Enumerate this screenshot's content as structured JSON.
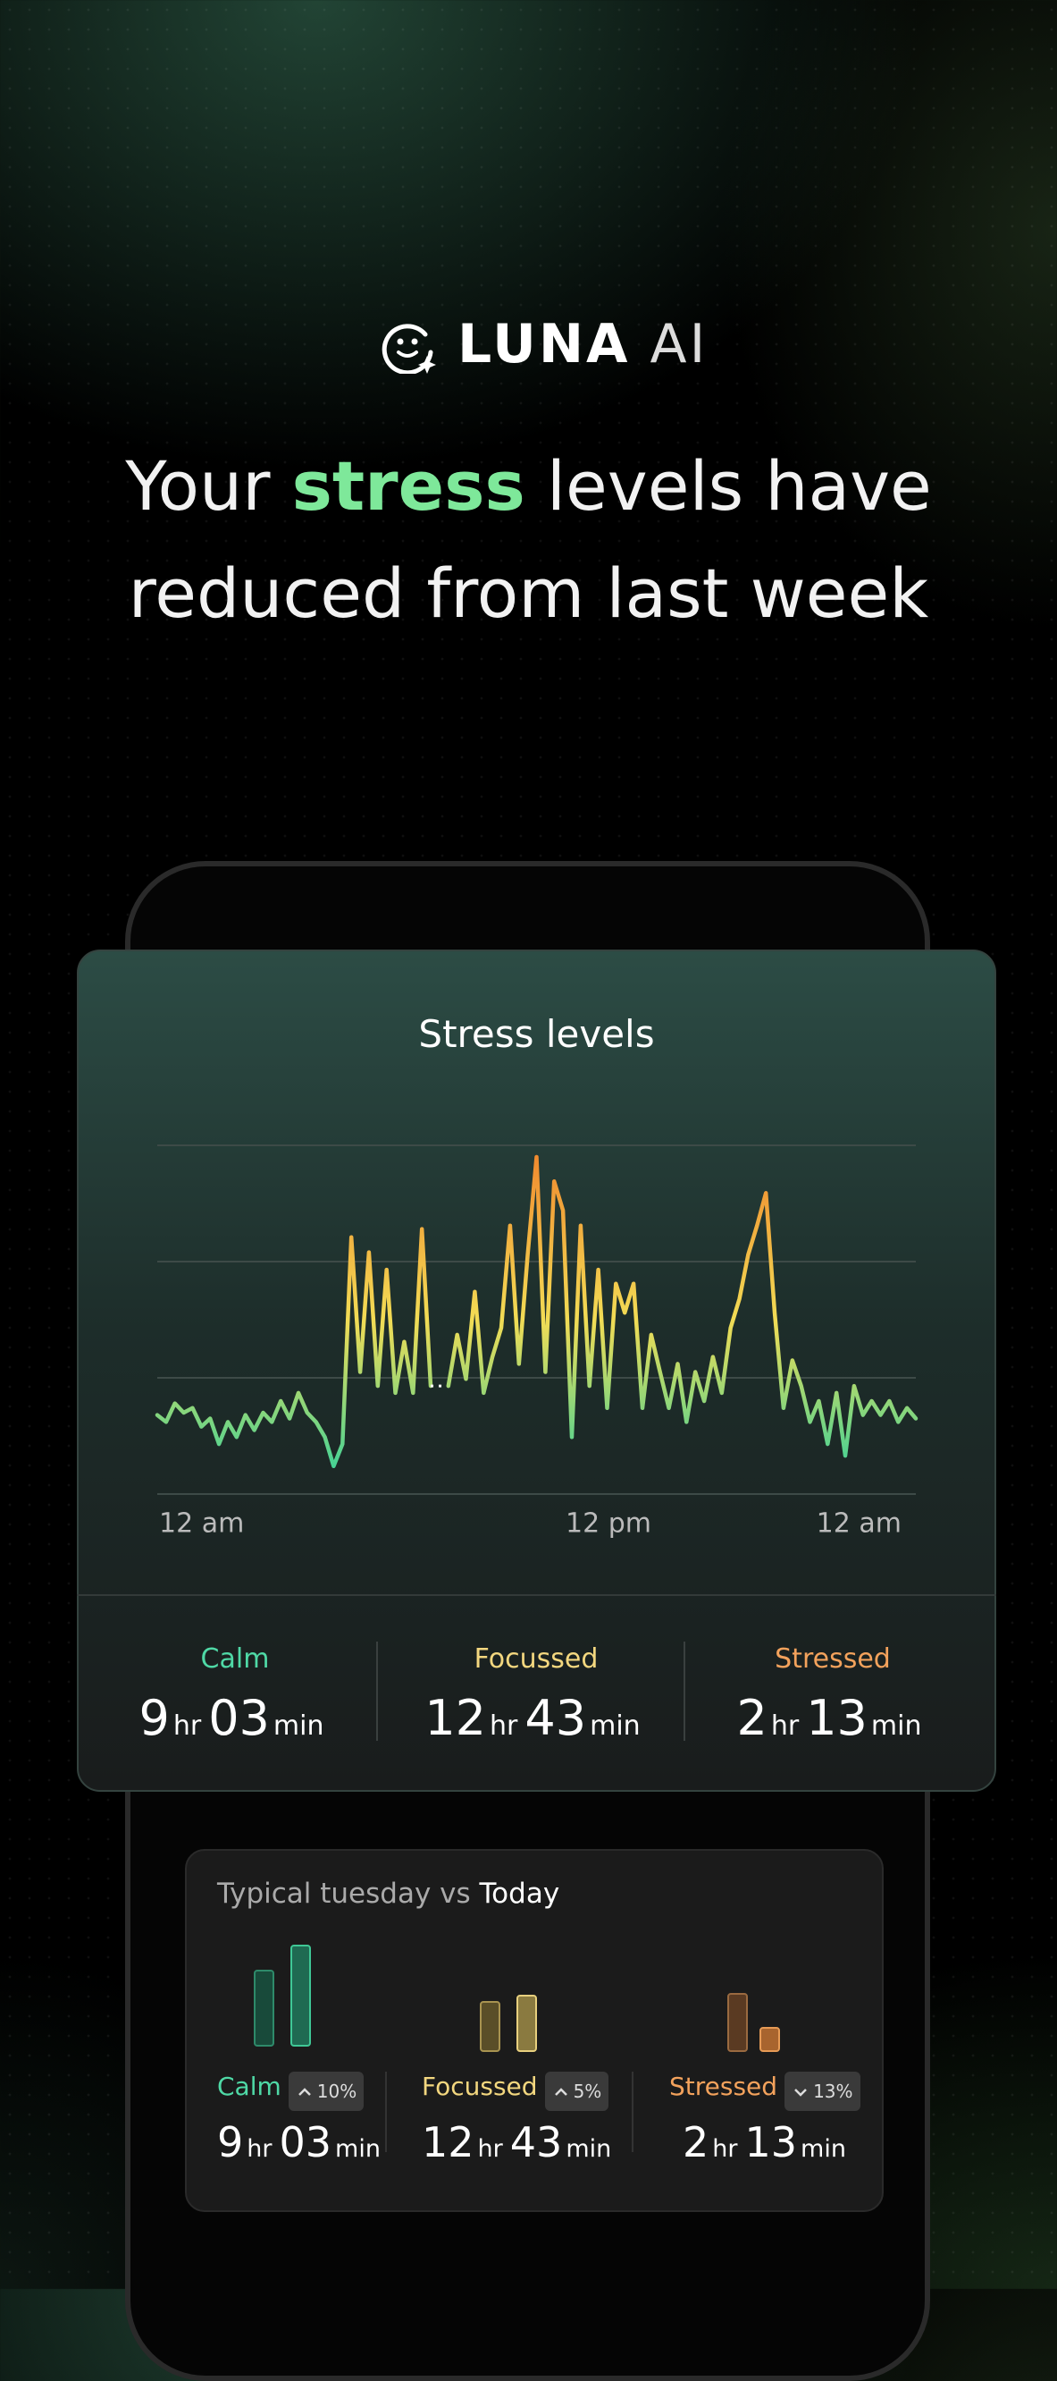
{
  "header": {
    "brand": "LUNA",
    "brand_suffix": "AI",
    "headline": {
      "before": "Your ",
      "highlight": "stress",
      "after": " levels have",
      "line2": "reduced from last week"
    }
  },
  "chart_data": {
    "type": "line",
    "title": "Stress levels",
    "x_labels": [
      "12 am",
      "12 pm",
      "12 am"
    ],
    "values": [
      0.68,
      0.62,
      0.78,
      0.7,
      0.74,
      0.58,
      0.65,
      0.43,
      0.62,
      0.49,
      0.68,
      0.55,
      0.7,
      0.62,
      0.8,
      0.65,
      0.87,
      0.7,
      0.62,
      0.49,
      0.24,
      0.43,
      2.21,
      1.05,
      2.08,
      0.93,
      1.93,
      0.87,
      1.31,
      0.87,
      2.28,
      0.93,
      null,
      0.93,
      1.37,
      0.99,
      1.74,
      0.87,
      1.18,
      1.43,
      2.31,
      1.12,
      2.06,
      2.9,
      1.05,
      2.69,
      2.44,
      0.49,
      2.31,
      0.93,
      1.93,
      0.74,
      1.81,
      1.56,
      1.81,
      0.74,
      1.37,
      1.05,
      0.74,
      1.12,
      0.62,
      1.05,
      0.8,
      1.18,
      0.87,
      1.43,
      1.68,
      2.06,
      2.31,
      2.59,
      1.56,
      0.74,
      1.15,
      0.93,
      0.62,
      0.8,
      0.43,
      0.87,
      0.33,
      0.93,
      0.68,
      0.8,
      0.68,
      0.8,
      0.62,
      0.74,
      0.65
    ],
    "ylim": [
      0,
      3
    ],
    "yticks": [
      0,
      1,
      2,
      3
    ],
    "grid": true
  },
  "summary": [
    {
      "label": "Calm",
      "hours": "9",
      "hours_unit": "hr",
      "minutes": "03",
      "minutes_unit": "min"
    },
    {
      "label": "Focussed",
      "hours": "12",
      "hours_unit": "hr",
      "minutes": "43",
      "minutes_unit": "min"
    },
    {
      "label": "Stressed",
      "hours": "2",
      "hours_unit": "hr",
      "minutes": "13",
      "minutes_unit": "min"
    }
  ],
  "comparison": {
    "title_prefix": "Typical tuesday vs ",
    "title_highlight": "Today",
    "items": [
      {
        "label": "Calm",
        "change": "10%",
        "hours": "9",
        "hours_unit": "hr",
        "minutes": "03",
        "minutes_unit": "min"
      },
      {
        "label": "Focussed",
        "change": "5%",
        "hours": "12",
        "hours_unit": "hr",
        "minutes": "43",
        "minutes_unit": "min"
      },
      {
        "label": "Stressed",
        "change": "13%",
        "hours": "2",
        "hours_unit": "hr",
        "minutes": "13",
        "minutes_unit": "min"
      }
    ]
  }
}
